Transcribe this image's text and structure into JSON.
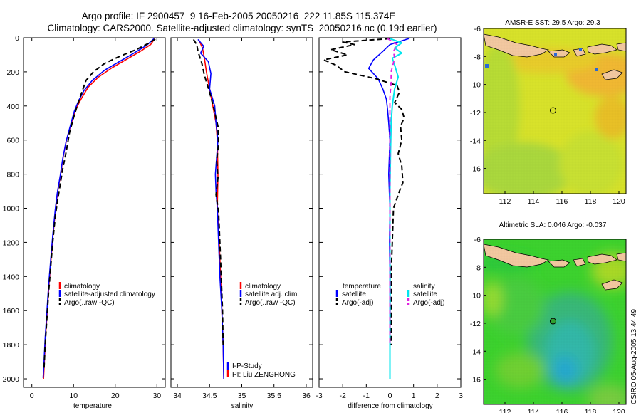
{
  "header": {
    "line1": "Argo profile: IF 2900457_9 16-Feb-2005 20050216_222 11.85S 115.374E",
    "line2": "Climatology: CARS2000. Satellite-adjusted climatology: synTS_20050216.nc (0.19d earlier)"
  },
  "colors": {
    "red": "#ff0000",
    "blue": "#0000ff",
    "black": "#000000",
    "cyan": "#00e5ee",
    "magenta": "#e020e0",
    "land": "#f2c8a0",
    "frame": "#000000"
  },
  "chart_data": [
    {
      "type": "line",
      "id": "temperature",
      "xlabel": "temperature",
      "xlim": [
        -2,
        32
      ],
      "ylim": [
        2050,
        0
      ],
      "xticks": [
        0,
        10,
        20,
        30
      ],
      "yticks": [
        0,
        200,
        400,
        600,
        800,
        1000,
        1200,
        1400,
        1600,
        1800,
        2000
      ],
      "legend": [
        "climatology",
        "satellite-adjusted climatology",
        "Argo(..raw -QC)"
      ],
      "series": [
        {
          "name": "climatology",
          "style": "red",
          "points": [
            [
              29.5,
              5
            ],
            [
              28.5,
              40
            ],
            [
              26,
              80
            ],
            [
              22.5,
              130
            ],
            [
              19,
              180
            ],
            [
              16,
              230
            ],
            [
              13.5,
              290
            ],
            [
              11.8,
              360
            ],
            [
              10.5,
              420
            ],
            [
              9.5,
              500
            ],
            [
              8.3,
              600
            ],
            [
              7.5,
              700
            ],
            [
              6.9,
              800
            ],
            [
              6.2,
              900
            ],
            [
              5.7,
              1000
            ],
            [
              5.1,
              1150
            ],
            [
              4.6,
              1300
            ],
            [
              4.1,
              1450
            ],
            [
              3.7,
              1600
            ],
            [
              3.3,
              1750
            ],
            [
              3,
              1900
            ],
            [
              2.8,
              2000
            ]
          ]
        },
        {
          "name": "satellite-adjusted climatology",
          "style": "blue",
          "points": [
            [
              29.3,
              5
            ],
            [
              27.5,
              45
            ],
            [
              24.5,
              90
            ],
            [
              21,
              140
            ],
            [
              17.5,
              190
            ],
            [
              14.5,
              250
            ],
            [
              12.5,
              310
            ],
            [
              11.2,
              370
            ],
            [
              10.2,
              430
            ],
            [
              9.3,
              510
            ],
            [
              8.2,
              610
            ],
            [
              7.4,
              710
            ],
            [
              6.8,
              810
            ],
            [
              6.1,
              910
            ],
            [
              5.6,
              1010
            ],
            [
              5,
              1160
            ],
            [
              4.5,
              1310
            ],
            [
              4,
              1460
            ],
            [
              3.6,
              1610
            ],
            [
              3.2,
              1760
            ],
            [
              2.9,
              1910
            ],
            [
              2.7,
              1995
            ]
          ]
        },
        {
          "name": "Argo(..raw -QC)",
          "style": "black-dash",
          "points": [
            [
              29.6,
              8
            ],
            [
              28.2,
              30
            ],
            [
              25,
              70
            ],
            [
              21,
              110
            ],
            [
              17.5,
              150
            ],
            [
              14.8,
              200
            ],
            [
              13,
              250
            ],
            [
              12,
              320
            ],
            [
              11,
              390
            ],
            [
              10,
              470
            ],
            [
              9,
              560
            ],
            [
              8.3,
              660
            ],
            [
              7.4,
              770
            ],
            [
              6.8,
              860
            ],
            [
              6.2,
              950
            ],
            [
              5.6,
              1050
            ],
            [
              5,
              1200
            ],
            [
              4.5,
              1350
            ],
            [
              4,
              1500
            ],
            [
              3.6,
              1650
            ],
            [
              3.2,
              1800
            ],
            [
              2.9,
              1950
            ]
          ]
        }
      ]
    },
    {
      "type": "line",
      "id": "salinity",
      "xlabel": "salinity",
      "xlim": [
        33.9,
        36.1
      ],
      "ylim": [
        2050,
        0
      ],
      "xticks": [
        34,
        34.5,
        35,
        35.5,
        36
      ],
      "yticks": [
        0,
        200,
        400,
        600,
        800,
        1000,
        1200,
        1400,
        1600,
        1800,
        2000
      ],
      "legend": [
        "climatology",
        "satellite adj. clim.",
        "Argo(..raw -QC)"
      ],
      "annotations": [
        "I-P-Study",
        "PI: Liu ZENGHONG"
      ],
      "series": [
        {
          "name": "climatology",
          "style": "red",
          "points": [
            [
              34.33,
              10
            ],
            [
              34.39,
              60
            ],
            [
              34.42,
              120
            ],
            [
              34.45,
              200
            ],
            [
              34.5,
              300
            ],
            [
              34.55,
              400
            ],
            [
              34.6,
              500
            ],
            [
              34.62,
              600
            ],
            [
              34.63,
              800
            ],
            [
              34.62,
              1000
            ],
            [
              34.65,
              1200
            ],
            [
              34.67,
              1400
            ],
            [
              34.69,
              1600
            ],
            [
              34.71,
              1800
            ],
            [
              34.72,
              2000
            ]
          ]
        },
        {
          "name": "satellite adj. clim.",
          "style": "blue",
          "points": [
            [
              34.32,
              10
            ],
            [
              34.41,
              50
            ],
            [
              34.36,
              90
            ],
            [
              34.48,
              140
            ],
            [
              34.52,
              210
            ],
            [
              34.5,
              300
            ],
            [
              34.58,
              400
            ],
            [
              34.6,
              500
            ],
            [
              34.63,
              600
            ],
            [
              34.59,
              800
            ],
            [
              34.6,
              900
            ],
            [
              34.62,
              1000
            ],
            [
              34.64,
              1200
            ],
            [
              34.66,
              1400
            ],
            [
              34.69,
              1600
            ],
            [
              34.71,
              1800
            ],
            [
              34.72,
              2000
            ]
          ]
        },
        {
          "name": "Argo(..raw -QC)",
          "style": "black-dash",
          "points": [
            [
              34.25,
              10
            ],
            [
              34.3,
              40
            ],
            [
              34.32,
              80
            ],
            [
              34.38,
              150
            ],
            [
              34.42,
              220
            ],
            [
              34.5,
              320
            ],
            [
              34.57,
              420
            ],
            [
              34.63,
              520
            ],
            [
              34.64,
              620
            ],
            [
              34.61,
              720
            ],
            [
              34.63,
              820
            ],
            [
              34.6,
              920
            ],
            [
              34.64,
              1020
            ],
            [
              34.66,
              1200
            ],
            [
              34.68,
              1400
            ],
            [
              34.7,
              1600
            ],
            [
              34.71,
              1800
            ]
          ]
        }
      ]
    },
    {
      "type": "line",
      "id": "difference",
      "xlabel": "difference from climatology",
      "xlim": [
        -3,
        3
      ],
      "ylim": [
        2050,
        0
      ],
      "xticks": [
        -3,
        -2,
        -1,
        0,
        1,
        2,
        3
      ],
      "yticks": [
        0,
        200,
        400,
        600,
        800,
        1000,
        1200,
        1400,
        1600,
        1800,
        2000
      ],
      "legend_titles": [
        "temperature",
        "salinity"
      ],
      "legend": [
        "satellite",
        "Argo(-adj)",
        "satellite",
        "Argo(-adj)"
      ],
      "series": [
        {
          "name": "temperature satellite",
          "style": "blue",
          "points": [
            [
              0.8,
              5
            ],
            [
              0,
              40
            ],
            [
              -0.3,
              80
            ],
            [
              -0.7,
              130
            ],
            [
              -0.9,
              180
            ],
            [
              -0.5,
              240
            ],
            [
              -0.3,
              300
            ],
            [
              -0.15,
              360
            ],
            [
              -0.1,
              420
            ],
            [
              -0.05,
              500
            ],
            [
              0,
              600
            ],
            [
              -0.05,
              800
            ],
            [
              0,
              1000
            ],
            [
              -0.02,
              1200
            ],
            [
              0,
              1400
            ],
            [
              0,
              1600
            ],
            [
              0,
              1800
            ],
            [
              0,
              1995
            ]
          ]
        },
        {
          "name": "temperature Argo(-adj)",
          "style": "black-dash",
          "points": [
            [
              0,
              5
            ],
            [
              -2,
              25
            ],
            [
              -1.5,
              40
            ],
            [
              -2.5,
              70
            ],
            [
              -1.8,
              100
            ],
            [
              -2.8,
              130
            ],
            [
              -2.3,
              160
            ],
            [
              -1.9,
              200
            ],
            [
              -0.6,
              240
            ],
            [
              0.3,
              280
            ],
            [
              0.4,
              320
            ],
            [
              0.2,
              380
            ],
            [
              0.5,
              420
            ],
            [
              0.6,
              470
            ],
            [
              0.45,
              520
            ],
            [
              0.5,
              600
            ],
            [
              0.35,
              680
            ],
            [
              0.5,
              750
            ],
            [
              0.55,
              850
            ],
            [
              0.4,
              900
            ],
            [
              0.15,
              1000
            ],
            [
              0.1,
              1200
            ],
            [
              0.05,
              1400
            ],
            [
              0.05,
              1600
            ],
            [
              0.05,
              1800
            ]
          ]
        },
        {
          "name": "salinity satellite",
          "style": "cyan",
          "points": [
            [
              0,
              5
            ],
            [
              0.5,
              30
            ],
            [
              0.2,
              60
            ],
            [
              0.5,
              90
            ],
            [
              0.1,
              120
            ],
            [
              0.2,
              160
            ],
            [
              0.35,
              230
            ],
            [
              0.2,
              300
            ],
            [
              0.1,
              400
            ],
            [
              0.05,
              500
            ],
            [
              0.02,
              700
            ],
            [
              0,
              900
            ],
            [
              0,
              1200
            ],
            [
              0.01,
              1500
            ],
            [
              0,
              1800
            ],
            [
              0,
              2000
            ]
          ]
        },
        {
          "name": "salinity Argo(-adj)",
          "style": "magenta-dash",
          "points": [
            [
              -0.1,
              5
            ],
            [
              0.3,
              40
            ],
            [
              0.15,
              80
            ],
            [
              0.2,
              120
            ],
            [
              0.05,
              200
            ],
            [
              0.05,
              260
            ],
            [
              0,
              350
            ],
            [
              0,
              500
            ],
            [
              0,
              800
            ],
            [
              0,
              1100
            ],
            [
              0,
              1400
            ],
            [
              0,
              1700
            ],
            [
              0,
              1800
            ]
          ]
        }
      ]
    }
  ],
  "maps": [
    {
      "id": "sst",
      "title": "AMSR-E SST: 29.5 Argo: 29.3",
      "xlim": [
        110.5,
        120.5
      ],
      "ylim": [
        -17.8,
        -6
      ],
      "xticks": [
        112,
        114,
        116,
        118,
        120
      ],
      "yticks": [
        -6,
        -8,
        -10,
        -12,
        -14,
        -16
      ],
      "argo_position": [
        115.374,
        -11.85
      ]
    },
    {
      "id": "sla",
      "title": "Altimetric SLA: 0.046 Argo: -0.037",
      "xlim": [
        110.5,
        120.5
      ],
      "ylim": [
        -17.8,
        -6
      ],
      "xticks": [
        112,
        114,
        116,
        118,
        120
      ],
      "yticks": [
        -6,
        -8,
        -10,
        -12,
        -14,
        -16
      ],
      "argo_position": [
        115.374,
        -11.85
      ]
    }
  ],
  "credit": "CSIRO 05-Aug-2005 13:44:49"
}
